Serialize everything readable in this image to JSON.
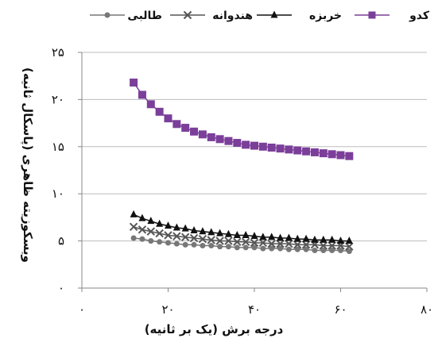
{
  "chart_data": {
    "type": "line",
    "xlabel": "درجه برش (یک بر ثانیه)",
    "ylabel": "ویسکوزیته ظاهری (پاسکال ثانیه)",
    "xlim": [
      0,
      80
    ],
    "ylim": [
      0,
      25
    ],
    "x_ticks": [
      0,
      20,
      40,
      60,
      80
    ],
    "y_ticks": [
      0,
      5,
      10,
      15,
      20,
      25
    ],
    "x_tick_labels": [
      "۰",
      "۲۰",
      "۴۰",
      "۶۰",
      "۸۰"
    ],
    "y_tick_labels": [
      "۰",
      "۵",
      "۱۰",
      "۱۵",
      "۲۰",
      "۲۵"
    ],
    "grid": "horizontal",
    "legend_position": "top",
    "x": [
      12,
      14,
      16,
      18,
      20,
      22,
      24,
      26,
      28,
      30,
      32,
      34,
      36,
      38,
      40,
      42,
      44,
      46,
      48,
      50,
      52,
      54,
      56,
      58,
      60,
      62
    ],
    "series": [
      {
        "name": "کدو",
        "marker": "square",
        "color": "#7B3F9A",
        "values": [
          21.8,
          20.5,
          19.5,
          18.7,
          18.0,
          17.4,
          17.0,
          16.6,
          16.3,
          16.0,
          15.8,
          15.6,
          15.4,
          15.2,
          15.1,
          15.0,
          14.9,
          14.8,
          14.7,
          14.6,
          14.5,
          14.4,
          14.3,
          14.2,
          14.1,
          14.0
        ]
      },
      {
        "name": "خربزه",
        "marker": "triangle",
        "color": "#111111",
        "values": [
          7.8,
          7.4,
          7.1,
          6.8,
          6.6,
          6.4,
          6.3,
          6.1,
          6.0,
          5.9,
          5.8,
          5.7,
          5.6,
          5.6,
          5.5,
          5.4,
          5.4,
          5.3,
          5.3,
          5.2,
          5.2,
          5.1,
          5.1,
          5.1,
          5.0,
          5.0
        ]
      },
      {
        "name": "هندوانه",
        "marker": "x",
        "color": "#555555",
        "values": [
          6.5,
          6.2,
          6.0,
          5.8,
          5.6,
          5.5,
          5.4,
          5.3,
          5.2,
          5.1,
          5.0,
          5.0,
          4.9,
          4.9,
          4.8,
          4.8,
          4.7,
          4.7,
          4.7,
          4.6,
          4.6,
          4.6,
          4.5,
          4.5,
          4.5,
          4.4
        ]
      },
      {
        "name": "طالبی",
        "marker": "circle",
        "color": "#777777",
        "values": [
          5.3,
          5.2,
          5.0,
          4.9,
          4.8,
          4.7,
          4.6,
          4.6,
          4.5,
          4.5,
          4.4,
          4.4,
          4.3,
          4.3,
          4.3,
          4.2,
          4.2,
          4.2,
          4.1,
          4.1,
          4.1,
          4.0,
          4.0,
          4.0,
          4.0,
          3.9
        ]
      }
    ]
  }
}
